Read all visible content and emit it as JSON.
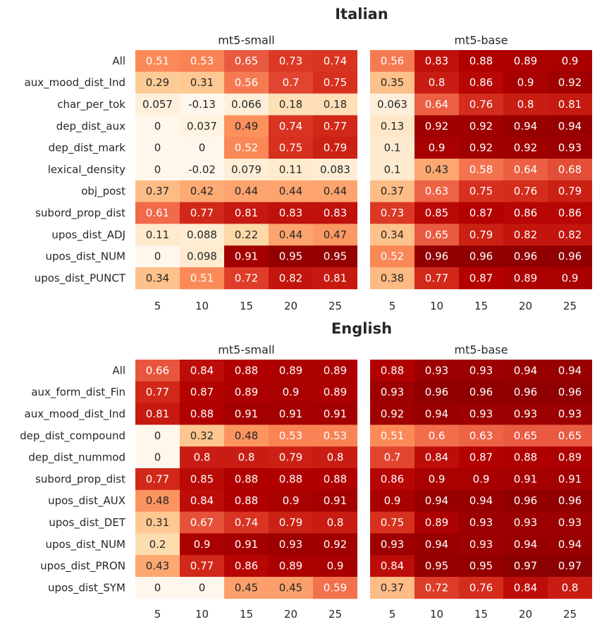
{
  "chart_data": [
    {
      "type": "heatmap",
      "title": "Italian",
      "models": [
        "mt5-small",
        "mt5-base"
      ],
      "columns": [
        "5",
        "10",
        "15",
        "20",
        "25"
      ],
      "rows": [
        "All",
        "aux_mood_dist_Ind",
        "char_per_tok",
        "dep_dist_aux",
        "dep_dist_mark",
        "lexical_density",
        "obj_post",
        "subord_prop_dist",
        "upos_dist_ADJ",
        "upos_dist_NUM",
        "upos_dist_PUNCT"
      ],
      "values": {
        "mt5-small": [
          [
            "0.51",
            "0.53",
            "0.65",
            "0.73",
            "0.74"
          ],
          [
            "0.29",
            "0.31",
            "0.56",
            "0.7",
            "0.75"
          ],
          [
            "0.057",
            "-0.13",
            "0.066",
            "0.18",
            "0.18"
          ],
          [
            "0",
            "0.037",
            "0.49",
            "0.74",
            "0.77"
          ],
          [
            "0",
            "0",
            "0.52",
            "0.75",
            "0.79"
          ],
          [
            "0",
            "-0.02",
            "0.079",
            "0.11",
            "0.083"
          ],
          [
            "0.37",
            "0.42",
            "0.44",
            "0.44",
            "0.44"
          ],
          [
            "0.61",
            "0.77",
            "0.81",
            "0.83",
            "0.83"
          ],
          [
            "0.11",
            "0.088",
            "0.22",
            "0.44",
            "0.47"
          ],
          [
            "0",
            "0.098",
            "0.91",
            "0.95",
            "0.95"
          ],
          [
            "0.34",
            "0.51",
            "0.72",
            "0.82",
            "0.81"
          ]
        ],
        "mt5-base": [
          [
            "0.56",
            "0.83",
            "0.88",
            "0.89",
            "0.9"
          ],
          [
            "0.35",
            "0.8",
            "0.86",
            "0.9",
            "0.92"
          ],
          [
            "0.063",
            "0.64",
            "0.76",
            "0.8",
            "0.81"
          ],
          [
            "0.13",
            "0.92",
            "0.92",
            "0.94",
            "0.94"
          ],
          [
            "0.1",
            "0.9",
            "0.92",
            "0.92",
            "0.93"
          ],
          [
            "0.1",
            "0.43",
            "0.58",
            "0.64",
            "0.68"
          ],
          [
            "0.37",
            "0.63",
            "0.75",
            "0.76",
            "0.79"
          ],
          [
            "0.73",
            "0.85",
            "0.87",
            "0.86",
            "0.86"
          ],
          [
            "0.34",
            "0.65",
            "0.79",
            "0.82",
            "0.82"
          ],
          [
            "0.52",
            "0.96",
            "0.96",
            "0.96",
            "0.96"
          ],
          [
            "0.38",
            "0.77",
            "0.87",
            "0.89",
            "0.9"
          ]
        ]
      }
    },
    {
      "type": "heatmap",
      "title": "English",
      "models": [
        "mt5-small",
        "mt5-base"
      ],
      "columns": [
        "5",
        "10",
        "15",
        "20",
        "25"
      ],
      "rows": [
        "All",
        "aux_form_dist_Fin",
        "aux_mood_dist_Ind",
        "dep_dist_compound",
        "dep_dist_nummod",
        "subord_prop_dist",
        "upos_dist_AUX",
        "upos_dist_DET",
        "upos_dist_NUM",
        "upos_dist_PRON",
        "upos_dist_SYM"
      ],
      "values": {
        "mt5-small": [
          [
            "0.66",
            "0.84",
            "0.88",
            "0.89",
            "0.89"
          ],
          [
            "0.77",
            "0.87",
            "0.89",
            "0.9",
            "0.89"
          ],
          [
            "0.81",
            "0.88",
            "0.91",
            "0.91",
            "0.91"
          ],
          [
            "0",
            "0.32",
            "0.48",
            "0.53",
            "0.53"
          ],
          [
            "0",
            "0.8",
            "0.8",
            "0.79",
            "0.8"
          ],
          [
            "0.77",
            "0.85",
            "0.88",
            "0.88",
            "0.88"
          ],
          [
            "0.48",
            "0.84",
            "0.88",
            "0.9",
            "0.91"
          ],
          [
            "0.31",
            "0.67",
            "0.74",
            "0.79",
            "0.8"
          ],
          [
            "0.2",
            "0.9",
            "0.91",
            "0.93",
            "0.92"
          ],
          [
            "0.43",
            "0.77",
            "0.86",
            "0.89",
            "0.9"
          ],
          [
            "0",
            "0",
            "0.45",
            "0.45",
            "0.59"
          ]
        ],
        "mt5-base": [
          [
            "0.88",
            "0.93",
            "0.93",
            "0.94",
            "0.94"
          ],
          [
            "0.93",
            "0.96",
            "0.96",
            "0.96",
            "0.96"
          ],
          [
            "0.92",
            "0.94",
            "0.93",
            "0.93",
            "0.93"
          ],
          [
            "0.51",
            "0.6",
            "0.63",
            "0.65",
            "0.65"
          ],
          [
            "0.7",
            "0.84",
            "0.87",
            "0.88",
            "0.89"
          ],
          [
            "0.86",
            "0.9",
            "0.9",
            "0.91",
            "0.91"
          ],
          [
            "0.9",
            "0.94",
            "0.94",
            "0.96",
            "0.96"
          ],
          [
            "0.75",
            "0.89",
            "0.93",
            "0.93",
            "0.93"
          ],
          [
            "0.93",
            "0.94",
            "0.93",
            "0.94",
            "0.94"
          ],
          [
            "0.84",
            "0.95",
            "0.95",
            "0.97",
            "0.97"
          ],
          [
            "0.37",
            "0.72",
            "0.76",
            "0.84",
            "0.8"
          ]
        ]
      }
    }
  ]
}
